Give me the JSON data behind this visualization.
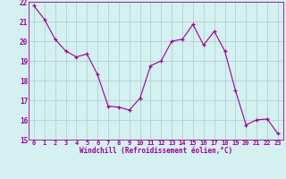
{
  "x": [
    0,
    1,
    2,
    3,
    4,
    5,
    6,
    7,
    8,
    9,
    10,
    11,
    12,
    13,
    14,
    15,
    16,
    17,
    18,
    19,
    20,
    21,
    22,
    23
  ],
  "y": [
    21.8,
    21.1,
    20.1,
    19.5,
    19.2,
    19.35,
    18.3,
    16.7,
    16.65,
    16.5,
    17.1,
    18.75,
    19.0,
    20.0,
    20.1,
    20.85,
    19.8,
    20.5,
    19.5,
    17.5,
    15.75,
    16.0,
    16.05,
    15.3
  ],
  "line_color": "#990099",
  "marker_color": "#990099",
  "bg_color": "#d4f0f0",
  "grid_color": "#aacccc",
  "xlabel": "Windchill (Refroidissement éolien,°C)",
  "xlabel_color": "#990099",
  "ylim": [
    15,
    22
  ],
  "xlim": [
    -0.5,
    23.5
  ],
  "yticks": [
    15,
    16,
    17,
    18,
    19,
    20,
    21,
    22
  ],
  "xticks": [
    0,
    1,
    2,
    3,
    4,
    5,
    6,
    7,
    8,
    9,
    10,
    11,
    12,
    13,
    14,
    15,
    16,
    17,
    18,
    19,
    20,
    21,
    22,
    23
  ],
  "tick_color": "#990099",
  "figsize": [
    3.2,
    2.0
  ],
  "dpi": 100
}
